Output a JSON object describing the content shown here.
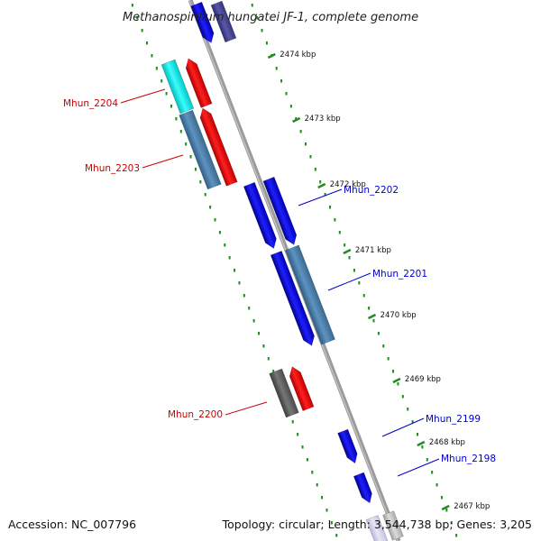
{
  "title": "Methanospirillum hungatei JF-1, complete genome",
  "accession_text": "Accession: NC_007796",
  "summary_text": "Topology: circular; Length: 3,544,738 bp; Genes: 3,205",
  "colors": {
    "forward": "#0000ff",
    "reverse": "#ff0000",
    "forward_label": "#0000cc",
    "reverse_label": "#cc0000",
    "tick": "#228b22",
    "backbone": "#888888"
  },
  "ticks": [
    {
      "label": "2474 kbp"
    },
    {
      "label": "2473 kbp"
    },
    {
      "label": "2472 kbp"
    },
    {
      "label": "2471 kbp"
    },
    {
      "label": "2470 kbp"
    },
    {
      "label": "2469 kbp"
    },
    {
      "label": "2468 kbp"
    },
    {
      "label": "2467 kbp"
    }
  ],
  "gene_labels": [
    {
      "name": "Mhun_2204",
      "strand": "reverse"
    },
    {
      "name": "Mhun_2203",
      "strand": "reverse"
    },
    {
      "name": "Mhun_2202",
      "strand": "forward"
    },
    {
      "name": "Mhun_2201",
      "strand": "forward"
    },
    {
      "name": "Mhun_2200",
      "strand": "reverse"
    },
    {
      "name": "Mhun_2199",
      "strand": "forward"
    },
    {
      "name": "Mhun_2198",
      "strand": "forward"
    }
  ]
}
